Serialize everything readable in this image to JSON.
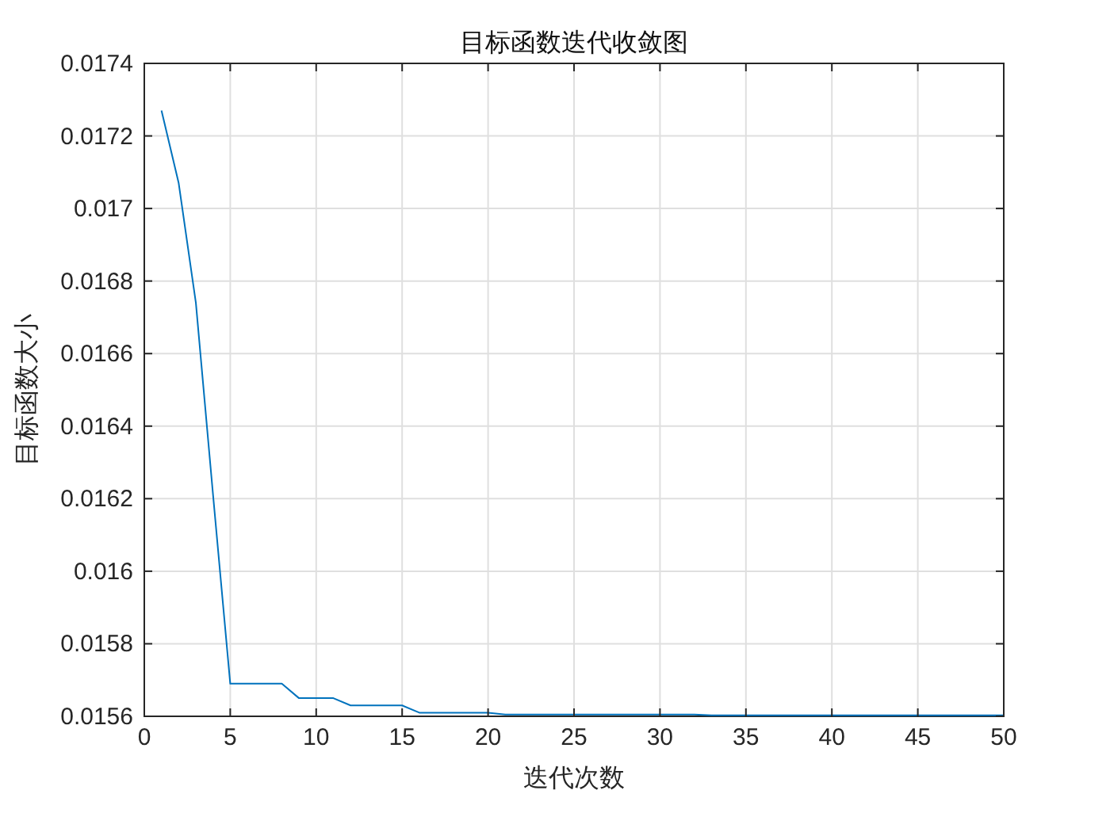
{
  "chart_data": {
    "type": "line",
    "title": "目标函数迭代收敛图",
    "xlabel": "迭代次数",
    "ylabel": "目标函数大小",
    "series": [
      {
        "color": "#0072bd",
        "x": [
          1,
          2,
          3,
          4,
          5,
          8,
          9,
          11,
          12,
          15,
          16,
          20,
          21,
          32,
          33,
          50
        ],
        "values": [
          0.01727,
          0.01707,
          0.01674,
          0.01621,
          0.01569,
          0.01569,
          0.01565,
          0.01565,
          0.01563,
          0.01563,
          0.01561,
          0.01561,
          0.015605,
          0.015605,
          0.015603,
          0.015603
        ]
      }
    ],
    "xlim": [
      0,
      50
    ],
    "xticks": [
      0,
      5,
      10,
      15,
      20,
      25,
      30,
      35,
      40,
      45,
      50
    ],
    "ylim": [
      0.0156,
      0.0174
    ],
    "yticks": [
      0.0156,
      0.0158,
      0.016,
      0.0162,
      0.0164,
      0.0166,
      0.0168,
      0.017,
      0.0172,
      0.0174
    ],
    "grid": true,
    "marker": "none",
    "line_style": "solid"
  }
}
